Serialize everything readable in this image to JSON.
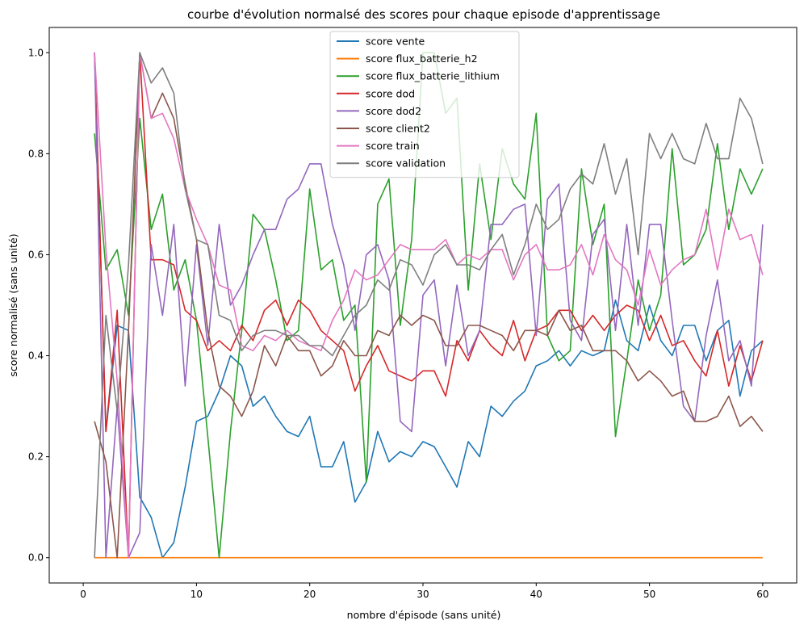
{
  "chart_data": {
    "type": "line",
    "title": "courbe d'évolution normalsé des scores pour chaque episode d'apprentissage",
    "xlabel": "nombre d'épisode (sans unité)",
    "ylabel": "score normalisé (sans unité)",
    "xlim": [
      -3,
      63
    ],
    "ylim": [
      -0.05,
      1.05
    ],
    "xticks": [
      0,
      10,
      20,
      30,
      40,
      50,
      60
    ],
    "xtick_labels": [
      "0",
      "10",
      "20",
      "30",
      "40",
      "50",
      "60"
    ],
    "yticks": [
      0.0,
      0.2,
      0.4,
      0.6,
      0.8,
      1.0
    ],
    "ytick_labels": [
      "0.0",
      "0.2",
      "0.4",
      "0.6",
      "0.8",
      "1.0"
    ],
    "grid": false,
    "legend_position": "top-center",
    "x": [
      1,
      2,
      3,
      4,
      5,
      6,
      7,
      8,
      9,
      10,
      11,
      12,
      13,
      14,
      15,
      16,
      17,
      18,
      19,
      20,
      21,
      22,
      23,
      24,
      25,
      26,
      27,
      28,
      29,
      30,
      31,
      32,
      33,
      34,
      35,
      36,
      37,
      38,
      39,
      40,
      41,
      42,
      43,
      44,
      45,
      46,
      47,
      48,
      49,
      50,
      51,
      52,
      53,
      54,
      55,
      56,
      57,
      58,
      59,
      60
    ],
    "series": [
      {
        "name": "score vente",
        "color": "#1f77b4",
        "values": [
          1.0,
          0.25,
          0.46,
          0.45,
          0.12,
          0.08,
          0.0,
          0.03,
          0.14,
          0.27,
          0.28,
          0.33,
          0.4,
          0.38,
          0.3,
          0.32,
          0.28,
          0.25,
          0.24,
          0.28,
          0.18,
          0.18,
          0.23,
          0.11,
          0.15,
          0.25,
          0.19,
          0.21,
          0.2,
          0.23,
          0.22,
          0.18,
          0.14,
          0.23,
          0.2,
          0.3,
          0.28,
          0.31,
          0.33,
          0.38,
          0.39,
          0.41,
          0.38,
          0.41,
          0.4,
          0.41,
          0.51,
          0.43,
          0.41,
          0.5,
          0.43,
          0.4,
          0.46,
          0.46,
          0.39,
          0.45,
          0.47,
          0.32,
          0.41,
          0.43
        ]
      },
      {
        "name": "score flux_batterie_h2",
        "color": "#ff7f0e",
        "values": [
          0,
          0,
          0,
          0,
          0,
          0,
          0,
          0,
          0,
          0,
          0,
          0,
          0,
          0,
          0,
          0,
          0,
          0,
          0,
          0,
          0,
          0,
          0,
          0,
          0,
          0,
          0,
          0,
          0,
          0,
          0,
          0,
          0,
          0,
          0,
          0,
          0,
          0,
          0,
          0,
          0,
          0,
          0,
          0,
          0,
          0,
          0,
          0,
          0,
          0,
          0,
          0,
          0,
          0,
          0,
          0,
          0,
          0,
          0,
          0
        ]
      },
      {
        "name": "score flux_batterie_lithium",
        "color": "#2ca02c",
        "values": [
          0.84,
          0.57,
          0.61,
          0.48,
          0.87,
          0.65,
          0.72,
          0.53,
          0.59,
          0.47,
          0.24,
          0.0,
          0.25,
          0.45,
          0.68,
          0.65,
          0.55,
          0.43,
          0.45,
          0.73,
          0.57,
          0.59,
          0.47,
          0.5,
          0.15,
          0.7,
          0.75,
          0.46,
          0.63,
          1.0,
          1.0,
          0.88,
          0.91,
          0.53,
          0.78,
          0.63,
          0.81,
          0.74,
          0.71,
          0.88,
          0.44,
          0.39,
          0.41,
          0.77,
          0.62,
          0.7,
          0.24,
          0.39,
          0.55,
          0.45,
          0.52,
          0.81,
          0.58,
          0.6,
          0.65,
          0.82,
          0.65,
          0.77,
          0.72,
          0.77
        ]
      },
      {
        "name": "score dod",
        "color": "#d62728",
        "values": [
          1.0,
          0.25,
          0.49,
          0.0,
          1.0,
          0.59,
          0.59,
          0.58,
          0.49,
          0.47,
          0.41,
          0.43,
          0.41,
          0.46,
          0.43,
          0.49,
          0.51,
          0.46,
          0.51,
          0.49,
          0.45,
          0.43,
          0.41,
          0.33,
          0.38,
          0.42,
          0.37,
          0.36,
          0.35,
          0.37,
          0.37,
          0.32,
          0.43,
          0.39,
          0.45,
          0.42,
          0.4,
          0.47,
          0.39,
          0.45,
          0.46,
          0.49,
          0.49,
          0.45,
          0.48,
          0.45,
          0.48,
          0.5,
          0.49,
          0.43,
          0.48,
          0.42,
          0.43,
          0.39,
          0.36,
          0.45,
          0.34,
          0.42,
          0.35,
          0.43
        ]
      },
      {
        "name": "score dod2",
        "color": "#9467bd",
        "values": [
          1.0,
          0.0,
          0.3,
          0.0,
          0.05,
          0.62,
          0.48,
          0.66,
          0.34,
          0.62,
          0.42,
          0.66,
          0.5,
          0.54,
          0.6,
          0.65,
          0.65,
          0.71,
          0.73,
          0.78,
          0.78,
          0.66,
          0.58,
          0.45,
          0.6,
          0.62,
          0.55,
          0.27,
          0.25,
          0.52,
          0.55,
          0.38,
          0.54,
          0.4,
          0.45,
          0.66,
          0.66,
          0.69,
          0.7,
          0.44,
          0.71,
          0.74,
          0.47,
          0.43,
          0.64,
          0.67,
          0.45,
          0.66,
          0.46,
          0.66,
          0.66,
          0.47,
          0.3,
          0.27,
          0.44,
          0.55,
          0.39,
          0.43,
          0.34,
          0.66
        ]
      },
      {
        "name": "score client2",
        "color": "#8c564b",
        "values": [
          0.27,
          0.19,
          0.0,
          0.45,
          1.0,
          0.87,
          0.92,
          0.87,
          0.74,
          0.63,
          0.45,
          0.34,
          0.32,
          0.28,
          0.33,
          0.42,
          0.38,
          0.44,
          0.41,
          0.41,
          0.36,
          0.38,
          0.43,
          0.4,
          0.4,
          0.45,
          0.44,
          0.48,
          0.46,
          0.48,
          0.47,
          0.42,
          0.42,
          0.46,
          0.46,
          0.45,
          0.44,
          0.41,
          0.45,
          0.45,
          0.44,
          0.49,
          0.45,
          0.46,
          0.41,
          0.41,
          0.41,
          0.39,
          0.35,
          0.37,
          0.35,
          0.32,
          0.33,
          0.27,
          0.27,
          0.28,
          0.32,
          0.26,
          0.28,
          0.25
        ]
      },
      {
        "name": "score train",
        "color": "#e377c2",
        "values": [
          1.0,
          0.61,
          0.35,
          0.0,
          1.0,
          0.87,
          0.88,
          0.83,
          0.73,
          0.67,
          0.62,
          0.54,
          0.53,
          0.42,
          0.41,
          0.44,
          0.43,
          0.45,
          0.43,
          0.42,
          0.41,
          0.47,
          0.51,
          0.57,
          0.55,
          0.56,
          0.59,
          0.62,
          0.61,
          0.61,
          0.61,
          0.63,
          0.58,
          0.6,
          0.59,
          0.61,
          0.61,
          0.55,
          0.6,
          0.62,
          0.57,
          0.57,
          0.58,
          0.62,
          0.56,
          0.64,
          0.59,
          0.57,
          0.5,
          0.61,
          0.54,
          0.57,
          0.59,
          0.6,
          0.69,
          0.57,
          0.69,
          0.63,
          0.64,
          0.56
        ]
      },
      {
        "name": "score validation",
        "color": "#7f7f7f",
        "values": [
          0.0,
          0.48,
          0.29,
          0.58,
          1.0,
          0.94,
          0.97,
          0.92,
          0.73,
          0.63,
          0.62,
          0.48,
          0.47,
          0.41,
          0.44,
          0.45,
          0.45,
          0.44,
          0.44,
          0.42,
          0.42,
          0.4,
          0.44,
          0.48,
          0.5,
          0.55,
          0.53,
          0.59,
          0.58,
          0.54,
          0.6,
          0.62,
          0.58,
          0.58,
          0.57,
          0.61,
          0.64,
          0.56,
          0.62,
          0.7,
          0.65,
          0.67,
          0.73,
          0.76,
          0.74,
          0.82,
          0.72,
          0.79,
          0.6,
          0.84,
          0.79,
          0.84,
          0.79,
          0.78,
          0.86,
          0.79,
          0.79,
          0.91,
          0.87,
          0.78
        ]
      }
    ]
  }
}
